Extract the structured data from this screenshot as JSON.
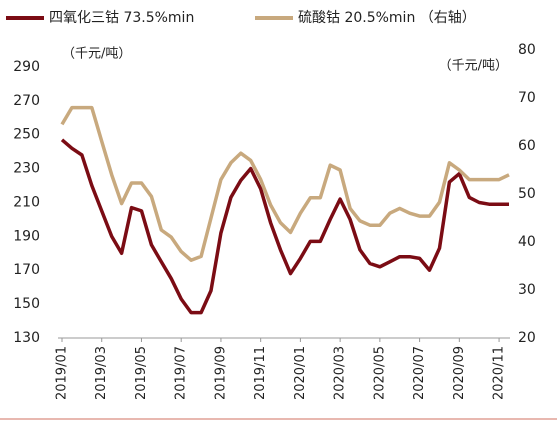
{
  "chart_data": {
    "type": "line",
    "legend": "top",
    "y_unit_left": "（千元/吨）",
    "y_unit_right": "（千元/吨）",
    "categories": [
      "2019/01",
      null,
      null,
      null,
      "2019/03",
      null,
      null,
      null,
      "2019/05",
      null,
      null,
      null,
      "2019/07",
      null,
      null,
      null,
      "2019/09",
      null,
      null,
      null,
      "2019/11",
      null,
      null,
      null,
      "2020/01",
      null,
      null,
      null,
      "2020/03",
      null,
      null,
      null,
      "2020/05",
      null,
      null,
      null,
      "2020/07",
      null,
      null,
      null,
      "2020/09",
      null,
      null,
      null,
      "2020/11",
      null
    ],
    "series": [
      {
        "name": "四氧化三钴 73.5%min",
        "color": "#7b0c14",
        "values": [
          247,
          242,
          238,
          220,
          205,
          190,
          180,
          207,
          205,
          185,
          175,
          165,
          153,
          145,
          145,
          158,
          192,
          213,
          223,
          230,
          218,
          198,
          182,
          168,
          177,
          187,
          187,
          200,
          212,
          200,
          182,
          174,
          172,
          175,
          178,
          178,
          177,
          170,
          183,
          222,
          227,
          213,
          210,
          209,
          209,
          209
        ]
      },
      {
        "name": "硫酸钴 20.5%min （右轴）",
        "color": "#c8a97e",
        "axis": "y2",
        "values": [
          64.5,
          68,
          68,
          68,
          61,
          54,
          48,
          52.3,
          52.3,
          49.5,
          42.5,
          41,
          38,
          36.2,
          37,
          45,
          53,
          56.5,
          58.5,
          57,
          53,
          47.7,
          44,
          42,
          46,
          49.2,
          49.2,
          56,
          55,
          47,
          44.4,
          43.5,
          43.5,
          46,
          47,
          46,
          45.4,
          45.4,
          48.3,
          56.5,
          55,
          53,
          53,
          53,
          53,
          54
        ]
      }
    ],
    "ylim": [
      130,
      300
    ],
    "yticks": [
      130,
      150,
      170,
      190,
      210,
      230,
      250,
      270,
      290
    ],
    "y2lim": [
      20,
      80
    ],
    "y2ticks": [
      20,
      30,
      40,
      50,
      60,
      70,
      80
    ]
  }
}
